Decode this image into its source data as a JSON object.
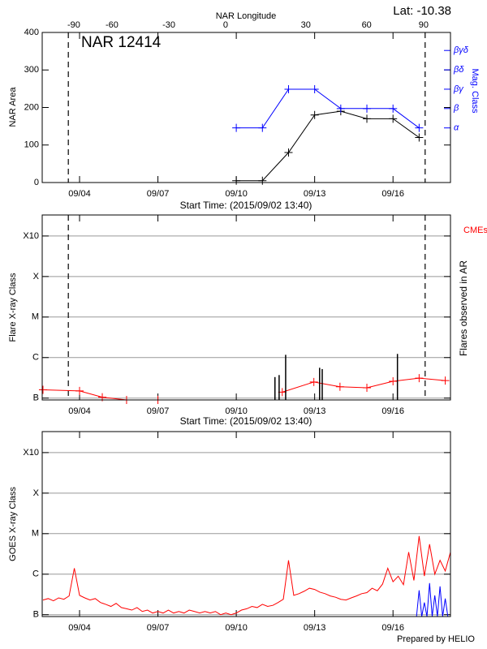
{
  "chart_data": [
    {
      "type": "line",
      "title": "NAR 12414",
      "annotation": "Lat: -10.38",
      "x2label": "NAR Longitude",
      "ylabel": "NAR Area",
      "y2label": "Mag. Class",
      "xlabel": "Start Time: (2015/09/02 13:40)",
      "xlim": [
        2.57,
        18.2
      ],
      "xticks": [
        {
          "value": 4,
          "label": "09/04"
        },
        {
          "value": 7,
          "label": "09/07"
        },
        {
          "value": 10,
          "label": "09/10"
        },
        {
          "value": 13,
          "label": "09/13"
        },
        {
          "value": 16,
          "label": "09/16"
        }
      ],
      "x2ticks": [
        {
          "value": 3.78,
          "label": "-90"
        },
        {
          "value": 5.24,
          "label": "-60"
        },
        {
          "value": 7.42,
          "label": "-30"
        },
        {
          "value": 9.59,
          "label": "0"
        },
        {
          "value": 12.66,
          "label": "30"
        },
        {
          "value": 14.99,
          "label": "60"
        },
        {
          "value": 17.17,
          "label": "90"
        }
      ],
      "ylim": [
        0,
        400
      ],
      "yticks": [
        0,
        100,
        200,
        300,
        400
      ],
      "y2lim": [
        -1.82,
        5.93
      ],
      "y2ticks": [
        {
          "value": 1,
          "label": "α"
        },
        {
          "value": 2,
          "label": "β"
        },
        {
          "value": 3,
          "label": "βγ"
        },
        {
          "value": 4,
          "label": "βδ"
        },
        {
          "value": 5,
          "label": "βγδ"
        }
      ],
      "y2color": "#0000ff",
      "log_y": false,
      "grid": false,
      "limb_lines": [
        3.57,
        17.23
      ],
      "series": [
        {
          "color": "#000000",
          "marker": "+",
          "x": [
            10,
            11,
            12,
            13,
            14,
            15,
            16,
            17
          ],
          "values": [
            5,
            5,
            80,
            180,
            190,
            170,
            170,
            120
          ]
        },
        {
          "color": "#0000ff",
          "marker": "+",
          "axis": "y2",
          "x": [
            10,
            11,
            12,
            13,
            14,
            15,
            16,
            17
          ],
          "values": [
            1,
            1,
            3,
            3,
            2,
            2,
            2,
            1
          ]
        }
      ]
    },
    {
      "type": "line",
      "ylabel": "Flare X-ray Class",
      "y2label": "Flares observed in AR",
      "annotation": "CMEs",
      "annotation_color": "#ff0000",
      "xlabel": "Start Time: (2015/09/02 13:40)",
      "xlim": [
        2.57,
        18.2
      ],
      "xticks": [
        {
          "value": 4,
          "label": "09/04"
        },
        {
          "value": 7,
          "label": "09/07"
        },
        {
          "value": 10,
          "label": "09/10"
        },
        {
          "value": 13,
          "label": "09/13"
        },
        {
          "value": 16,
          "label": "09/16"
        }
      ],
      "ylim": [
        9e-08,
        0.0033
      ],
      "log_y": true,
      "grid": true,
      "yticks": [
        {
          "value": 1e-07,
          "label": "B"
        },
        {
          "value": 1e-06,
          "label": "C"
        },
        {
          "value": 1e-05,
          "label": "M"
        },
        {
          "value": 0.0001,
          "label": "X"
        },
        {
          "value": 0.001,
          "label": "X10"
        }
      ],
      "limb_lines": [
        3.57,
        17.23
      ],
      "series": [
        {
          "color": "#ff0000",
          "marker": "+",
          "x": [
            2.6,
            4.0,
            4.87,
            5.8,
            7.0,
            9.4,
            11.76,
            12.97,
            13.97,
            15.0,
            16.0,
            17.0,
            18.0
          ],
          "values": [
            1.6e-07,
            1.5e-07,
            1.05e-07,
            9e-08,
            9e-08,
            null,
            1.4e-07,
            2.5e-07,
            1.9e-07,
            1.8e-07,
            2.6e-07,
            3.1e-07,
            2.7e-07
          ]
        }
      ],
      "flares": {
        "color": "#000000",
        "x": [
          11.48,
          11.64,
          11.89,
          13.19,
          13.29,
          16.17
        ],
        "values": [
          3.3e-07,
          3.7e-07,
          1.17e-06,
          5.6e-07,
          5.2e-07,
          1.23e-06
        ]
      }
    },
    {
      "type": "line",
      "ylabel": "GOES X-ray Class",
      "xlim": [
        2.57,
        18.2
      ],
      "xticks": [
        {
          "value": 4,
          "label": "09/04"
        },
        {
          "value": 7,
          "label": "09/07"
        },
        {
          "value": 10,
          "label": "09/10"
        },
        {
          "value": 13,
          "label": "09/13"
        },
        {
          "value": 16,
          "label": "09/16"
        }
      ],
      "ylim": [
        9e-08,
        0.0033
      ],
      "log_y": true,
      "grid": true,
      "yticks": [
        {
          "value": 1e-07,
          "label": "B"
        },
        {
          "value": 1e-06,
          "label": "C"
        },
        {
          "value": 1e-05,
          "label": "M"
        },
        {
          "value": 0.0001,
          "label": "X"
        },
        {
          "value": 0.001,
          "label": "X10"
        }
      ],
      "series": [
        {
          "color": "#ff0000",
          "x": [
            2.6,
            2.8,
            3.0,
            3.2,
            3.4,
            3.6,
            3.8,
            4.0,
            4.2,
            4.4,
            4.6,
            4.8,
            5.0,
            5.2,
            5.4,
            5.6,
            5.8,
            6.0,
            6.2,
            6.4,
            6.6,
            6.8,
            7.0,
            7.2,
            7.4,
            7.6,
            7.8,
            8.0,
            8.2,
            8.4,
            8.6,
            8.8,
            9.0,
            9.2,
            9.4,
            9.6,
            9.8,
            10.0,
            10.2,
            10.4,
            10.6,
            10.8,
            11.0,
            11.2,
            11.4,
            11.6,
            11.8,
            12.0,
            12.2,
            12.4,
            12.6,
            12.8,
            13.0,
            13.2,
            13.4,
            13.6,
            13.8,
            14.0,
            14.2,
            14.4,
            14.6,
            14.8,
            15.0,
            15.2,
            15.4,
            15.6,
            15.8,
            16.0,
            16.2,
            16.4,
            16.6,
            16.8,
            17.0,
            17.2,
            17.4,
            17.6,
            17.8,
            18.0,
            18.2
          ],
          "values": [
            2.3e-07,
            2.5e-07,
            2.2e-07,
            2.6e-07,
            2.4e-07,
            2.9e-07,
            1.4e-06,
            3e-07,
            2.6e-07,
            2.3e-07,
            2.5e-07,
            2e-07,
            1.8e-07,
            1.6e-07,
            1.9e-07,
            1.5e-07,
            1.4e-07,
            1.3e-07,
            1.5e-07,
            1.2e-07,
            1.3e-07,
            1.1e-07,
            1.2e-07,
            1.1e-07,
            1.3e-07,
            1.1e-07,
            1.2e-07,
            1.1e-07,
            1.3e-07,
            1.2e-07,
            1.1e-07,
            1.2e-07,
            1.1e-07,
            1.2e-07,
            1e-07,
            1.1e-07,
            1e-07,
            1.1e-07,
            1.3e-07,
            1.4e-07,
            1.6e-07,
            1.5e-07,
            1.8e-07,
            1.6e-07,
            1.7e-07,
            2e-07,
            2.4e-07,
            2.2e-06,
            3e-07,
            3.3e-07,
            3.8e-07,
            4.5e-07,
            4.2e-07,
            3.6e-07,
            3.3e-07,
            2.9e-07,
            2.7e-07,
            2.4e-07,
            2.3e-07,
            2.6e-07,
            2.9e-07,
            3.3e-07,
            3.5e-07,
            4.5e-07,
            3.9e-07,
            5.7e-07,
            1.4e-06,
            6.5e-07,
            8.9e-07,
            5.5e-07,
            3.5e-06,
            7e-07,
            8.7e-06,
            9e-07,
            5.5e-06,
            1e-06,
            2.2e-06,
            1.2e-06,
            3.5e-06
          ]
        },
        {
          "color": "#0000ff",
          "x": [
            16.9,
            17.0,
            17.1,
            17.2,
            17.3,
            17.4,
            17.5,
            17.6,
            17.7,
            17.8,
            17.9,
            18.0,
            18.1
          ],
          "values": [
            9e-08,
            4e-07,
            9e-08,
            2e-07,
            9e-08,
            6e-07,
            9e-08,
            3e-07,
            9e-08,
            5e-07,
            9e-08,
            2.5e-07,
            9e-08
          ]
        }
      ]
    }
  ],
  "footer": "Prepared by HELIO"
}
